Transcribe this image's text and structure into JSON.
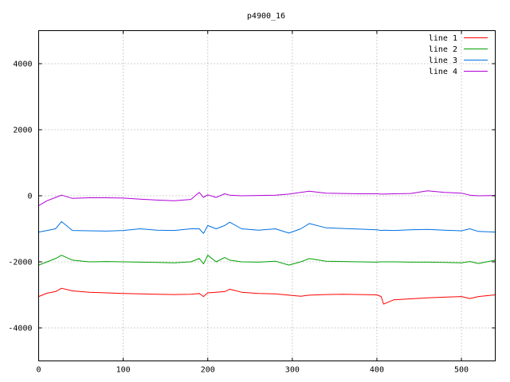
{
  "chart_data": {
    "type": "line",
    "title": "p4900_16",
    "xlabel": "",
    "ylabel": "",
    "xlim": [
      0,
      540
    ],
    "ylim": [
      -5000,
      5000
    ],
    "xticks": [
      0,
      100,
      200,
      300,
      400,
      500
    ],
    "yticks": [
      -4000,
      -2000,
      0,
      2000,
      4000
    ],
    "grid": true,
    "legend_position": "top-right",
    "x": [
      0,
      10,
      20,
      27,
      40,
      60,
      80,
      100,
      120,
      140,
      160,
      180,
      190,
      195,
      200,
      210,
      220,
      226,
      240,
      260,
      280,
      296,
      310,
      320,
      340,
      360,
      380,
      400,
      405,
      408,
      420,
      440,
      460,
      480,
      500,
      510,
      520,
      540
    ],
    "series": [
      {
        "name": "line 1",
        "color": "#ff0000",
        "values": [
          -3050,
          -2950,
          -2900,
          -2800,
          -2880,
          -2920,
          -2940,
          -2960,
          -2970,
          -2980,
          -2990,
          -2980,
          -2960,
          -3050,
          -2940,
          -2920,
          -2900,
          -2830,
          -2920,
          -2960,
          -2970,
          -3010,
          -3040,
          -3010,
          -2990,
          -2980,
          -2990,
          -3000,
          -3050,
          -3280,
          -3150,
          -3120,
          -3090,
          -3070,
          -3050,
          -3110,
          -3050,
          -3000
        ]
      },
      {
        "name": "line 2",
        "color": "#00a000",
        "values": [
          -2100,
          -2000,
          -1900,
          -1800,
          -1950,
          -2000,
          -1990,
          -2000,
          -2010,
          -2020,
          -2030,
          -2000,
          -1900,
          -2060,
          -1800,
          -2000,
          -1870,
          -1950,
          -2000,
          -2010,
          -1980,
          -2100,
          -2000,
          -1900,
          -1980,
          -1990,
          -2000,
          -2010,
          -2000,
          -2000,
          -2000,
          -2010,
          -2010,
          -2020,
          -2030,
          -1990,
          -2050,
          -1950
        ]
      },
      {
        "name": "line 3",
        "color": "#0070e0",
        "values": [
          -1100,
          -1050,
          -1000,
          -780,
          -1050,
          -1060,
          -1070,
          -1050,
          -1000,
          -1040,
          -1050,
          -1000,
          -1000,
          -1140,
          -900,
          -1000,
          -900,
          -800,
          -1000,
          -1040,
          -1000,
          -1130,
          -1000,
          -840,
          -970,
          -990,
          -1010,
          -1030,
          -1050,
          -1040,
          -1050,
          -1030,
          -1020,
          -1040,
          -1060,
          -1000,
          -1080,
          -1100
        ]
      },
      {
        "name": "line 4",
        "color": "#b000d8",
        "values": [
          -300,
          -150,
          -50,
          20,
          -80,
          -60,
          -60,
          -70,
          -100,
          -130,
          -150,
          -110,
          100,
          -50,
          30,
          -50,
          60,
          20,
          0,
          10,
          20,
          50,
          100,
          140,
          80,
          70,
          60,
          60,
          50,
          50,
          60,
          70,
          150,
          100,
          80,
          20,
          0,
          10
        ]
      }
    ]
  }
}
